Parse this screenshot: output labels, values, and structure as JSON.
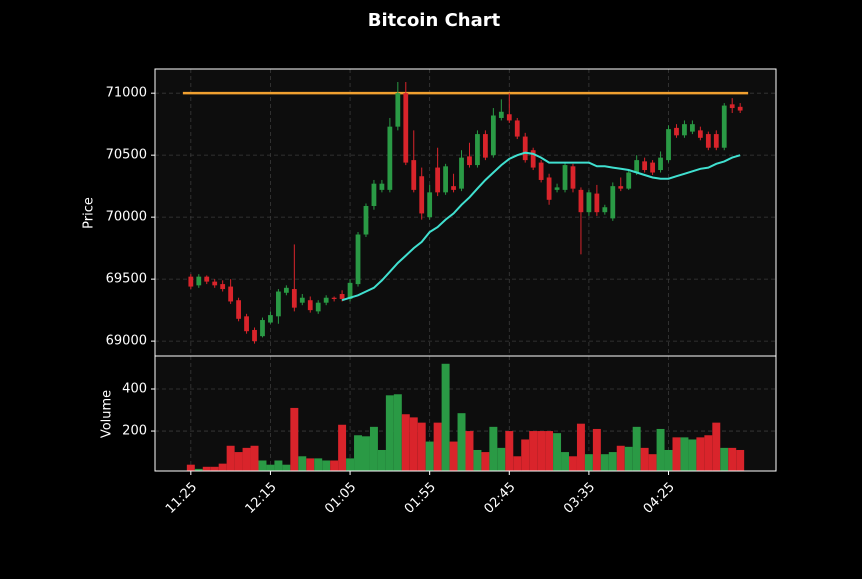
{
  "chart_data": {
    "type": "candlestick",
    "title": "Bitcoin Chart",
    "ylabel": "Price",
    "volume_label": "Volume",
    "up_color": "#2a9a45",
    "down_color": "#d9242b",
    "grid": true,
    "categories": [
      "11:25",
      null,
      null,
      null,
      null,
      null,
      null,
      null,
      null,
      null,
      "12:15",
      null,
      null,
      null,
      null,
      null,
      null,
      null,
      null,
      null,
      "01:05",
      null,
      null,
      null,
      null,
      null,
      null,
      null,
      null,
      null,
      "01:55",
      null,
      null,
      null,
      null,
      null,
      null,
      null,
      null,
      null,
      "02:45",
      null,
      null,
      null,
      null,
      null,
      null,
      null,
      null,
      null,
      "03:35",
      null,
      null,
      null,
      null,
      null,
      null,
      null,
      null,
      null,
      "04:25",
      null,
      null,
      null,
      null,
      null,
      null,
      null,
      null,
      null
    ],
    "xlim": [
      -4.5,
      73.5
    ],
    "open": [
      69520,
      69450,
      69520,
      69480,
      69460,
      69440,
      69330,
      69200,
      69090,
      69040,
      69150,
      69200,
      69390,
      69420,
      69310,
      69330,
      69240,
      69310,
      69350,
      69380,
      69340,
      69460,
      69860,
      70090,
      70220,
      70220,
      70730,
      71000,
      70460,
      70330,
      70000,
      70400,
      70200,
      70250,
      70230,
      70490,
      70420,
      70670,
      70500,
      70800,
      70830,
      70780,
      70650,
      70540,
      70440,
      70320,
      70220,
      70220,
      70410,
      70220,
      70040,
      70190,
      70040,
      69990,
      70250,
      70230,
      70360,
      70450,
      70440,
      70380,
      70460,
      70720,
      70660,
      70690,
      70700,
      70670,
      70670,
      70560,
      70910,
      70890
    ],
    "high": [
      69540,
      69540,
      69530,
      69500,
      69490,
      69500,
      69350,
      69220,
      69110,
      69190,
      69240,
      69420,
      69450,
      69780,
      69380,
      69360,
      69330,
      69370,
      69360,
      69410,
      69500,
      69880,
      70110,
      70300,
      70300,
      70800,
      71090,
      71090,
      70700,
      70400,
      70260,
      70560,
      70430,
      70350,
      70540,
      70600,
      70700,
      70700,
      70880,
      70950,
      71000,
      70800,
      70680,
      70560,
      70460,
      70350,
      70270,
      70440,
      70430,
      70240,
      70220,
      70260,
      70100,
      70280,
      70320,
      70380,
      70500,
      70480,
      70460,
      70530,
      70740,
      70750,
      70780,
      70780,
      70730,
      70690,
      70700,
      70920,
      70960,
      70920
    ],
    "low": [
      69420,
      69430,
      69460,
      69430,
      69400,
      69300,
      69160,
      69060,
      68980,
      69030,
      69140,
      69140,
      69370,
      69240,
      69290,
      69230,
      69220,
      69290,
      69320,
      69320,
      69320,
      69440,
      69840,
      70060,
      70200,
      70200,
      70700,
      70420,
      70200,
      69980,
      69980,
      70170,
      70180,
      70200,
      70210,
      70400,
      70400,
      70460,
      70480,
      70780,
      70760,
      70630,
      70440,
      70380,
      70280,
      70100,
      70200,
      70200,
      70200,
      69700,
      70010,
      70010,
      70020,
      69970,
      70210,
      70220,
      70340,
      70360,
      70340,
      70360,
      70440,
      70640,
      70640,
      70670,
      70620,
      70540,
      70540,
      70540,
      70840,
      70840
    ],
    "close": [
      69440,
      69520,
      69480,
      69450,
      69420,
      69320,
      69180,
      69080,
      69000,
      69170,
      69210,
      69400,
      69430,
      69270,
      69350,
      69250,
      69310,
      69350,
      69340,
      69340,
      69470,
      69860,
      70090,
      70270,
      70270,
      70730,
      71000,
      70440,
      70220,
      70030,
      70200,
      70200,
      70410,
      70220,
      70480,
      70420,
      70670,
      70480,
      70820,
      70850,
      70780,
      70650,
      70460,
      70400,
      70300,
      70140,
      70240,
      70420,
      70230,
      70040,
      70200,
      70040,
      70080,
      70250,
      70230,
      70360,
      70460,
      70380,
      70360,
      70480,
      70710,
      70660,
      70750,
      70750,
      70640,
      70560,
      70560,
      70900,
      70880,
      70860
    ],
    "volume": [
      40,
      20,
      30,
      30,
      45,
      130,
      100,
      120,
      130,
      60,
      40,
      60,
      40,
      310,
      80,
      70,
      70,
      60,
      60,
      230,
      70,
      180,
      175,
      220,
      110,
      370,
      375,
      280,
      265,
      240,
      150,
      240,
      520,
      150,
      285,
      200,
      110,
      100,
      220,
      120,
      200,
      80,
      160,
      200,
      200,
      200,
      190,
      100,
      80,
      235,
      90,
      210,
      90,
      100,
      130,
      125,
      220,
      120,
      90,
      210,
      110,
      170,
      170,
      160,
      170,
      180,
      240,
      120,
      120,
      110
    ],
    "ma": {
      "color": "#40e0d0",
      "values": [
        null,
        null,
        null,
        null,
        null,
        null,
        null,
        null,
        null,
        null,
        null,
        null,
        null,
        null,
        null,
        null,
        null,
        null,
        null,
        69330,
        69350,
        69370,
        69400,
        69430,
        69490,
        69560,
        69630,
        69690,
        69750,
        69800,
        69880,
        69920,
        69980,
        70030,
        70100,
        70160,
        70230,
        70300,
        70360,
        70420,
        70470,
        70500,
        70520,
        70510,
        70480,
        70440,
        70440,
        70440,
        70440,
        70440,
        70440,
        70410,
        70410,
        70400,
        70390,
        70380,
        70360,
        70340,
        70320,
        70310,
        70310,
        70330,
        70350,
        70370,
        70390,
        70400,
        70430,
        70450,
        70480,
        70500
      ]
    },
    "hline": {
      "value": 71000,
      "color": "#f0a030"
    },
    "ylim": [
      68880,
      71195
    ],
    "yticks": [
      69000,
      69500,
      70000,
      70500,
      71000
    ],
    "volume_ylim": [
      10,
      557
    ],
    "volume_yticks": [
      200,
      400
    ]
  }
}
